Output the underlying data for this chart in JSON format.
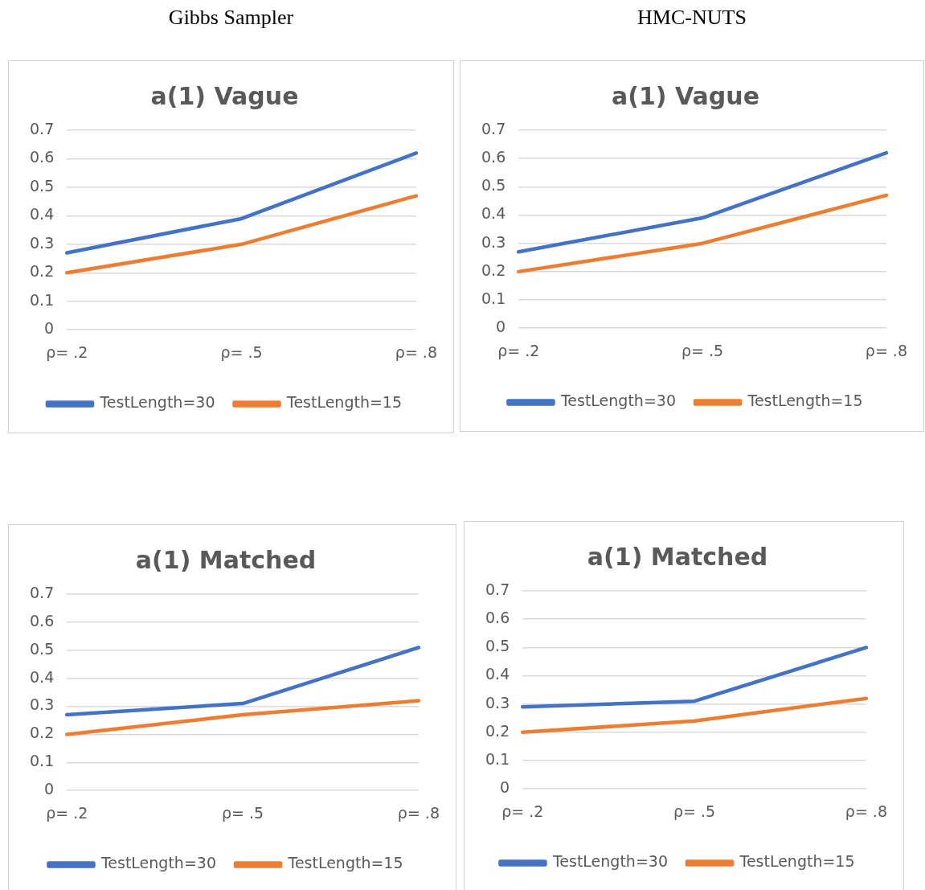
{
  "chart_data": [
    {
      "type": "line",
      "title": "a(1) Vague",
      "annotations": [
        "Gibbs Sampler"
      ],
      "categories": [
        "ρ= .2",
        "ρ= .5",
        "ρ= .8"
      ],
      "series": [
        {
          "name": "TestLength=30",
          "color": "#4472c4",
          "values": [
            0.27,
            0.39,
            0.62
          ]
        },
        {
          "name": "TestLength=15",
          "color": "#ed7d31",
          "values": [
            0.2,
            0.3,
            0.47
          ]
        }
      ],
      "ylim": [
        0,
        0.7
      ],
      "yticks": [
        0,
        0.1,
        0.2,
        0.3,
        0.4,
        0.5,
        0.6,
        0.7
      ],
      "grid": "y",
      "legend": "bottom",
      "marker": "none",
      "line_style": "solid"
    },
    {
      "type": "line",
      "title": "a(1) Vague",
      "annotations": [
        "HMC-NUTS"
      ],
      "categories": [
        "ρ= .2",
        "ρ= .5",
        "ρ= .8"
      ],
      "series": [
        {
          "name": "TestLength=30",
          "color": "#4472c4",
          "values": [
            0.27,
            0.39,
            0.62
          ]
        },
        {
          "name": "TestLength=15",
          "color": "#ed7d31",
          "values": [
            0.2,
            0.3,
            0.47
          ]
        }
      ],
      "ylim": [
        0,
        0.7
      ],
      "yticks": [
        0,
        0.1,
        0.2,
        0.3,
        0.4,
        0.5,
        0.6,
        0.7
      ],
      "grid": "y",
      "legend": "bottom",
      "marker": "none",
      "line_style": "solid"
    },
    {
      "type": "line",
      "title": "a(1) Matched",
      "categories": [
        "ρ= .2",
        "ρ= .5",
        "ρ= .8"
      ],
      "series": [
        {
          "name": "TestLength=30",
          "color": "#4472c4",
          "values": [
            0.27,
            0.31,
            0.51
          ]
        },
        {
          "name": "TestLength=15",
          "color": "#ed7d31",
          "values": [
            0.2,
            0.27,
            0.32
          ]
        }
      ],
      "ylim": [
        0,
        0.7
      ],
      "yticks": [
        0,
        0.1,
        0.2,
        0.3,
        0.4,
        0.5,
        0.6,
        0.7
      ],
      "grid": "y",
      "legend": "bottom",
      "marker": "none",
      "line_style": "solid"
    },
    {
      "type": "line",
      "title": "a(1) Matched",
      "categories": [
        "ρ= .2",
        "ρ= .5",
        "ρ= .8"
      ],
      "series": [
        {
          "name": "TestLength=30",
          "color": "#4472c4",
          "values": [
            0.29,
            0.31,
            0.5
          ]
        },
        {
          "name": "TestLength=15",
          "color": "#ed7d31",
          "values": [
            0.2,
            0.24,
            0.32
          ]
        }
      ],
      "ylim": [
        0,
        0.7
      ],
      "yticks": [
        0,
        0.1,
        0.2,
        0.3,
        0.4,
        0.5,
        0.6,
        0.7
      ],
      "grid": "y",
      "legend": "bottom",
      "marker": "none",
      "line_style": "solid"
    }
  ]
}
